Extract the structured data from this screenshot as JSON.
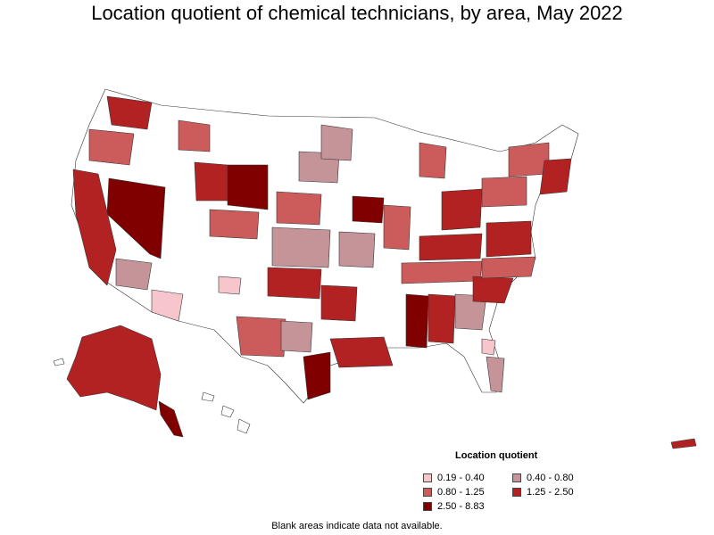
{
  "title": "Location quotient of chemical technicians, by area, May 2022",
  "legend": {
    "title": "Location quotient",
    "items": [
      {
        "label": "0.19 - 0.40",
        "color": "#f7c6cc"
      },
      {
        "label": "0.40 - 0.80",
        "color": "#c49498"
      },
      {
        "label": "0.80 - 1.25",
        "color": "#cc5c5c"
      },
      {
        "label": "1.25 - 2.50",
        "color": "#b22222"
      },
      {
        "label": "2.50 - 8.83",
        "color": "#800000"
      }
    ]
  },
  "footnote": "Blank areas indicate data not available."
}
